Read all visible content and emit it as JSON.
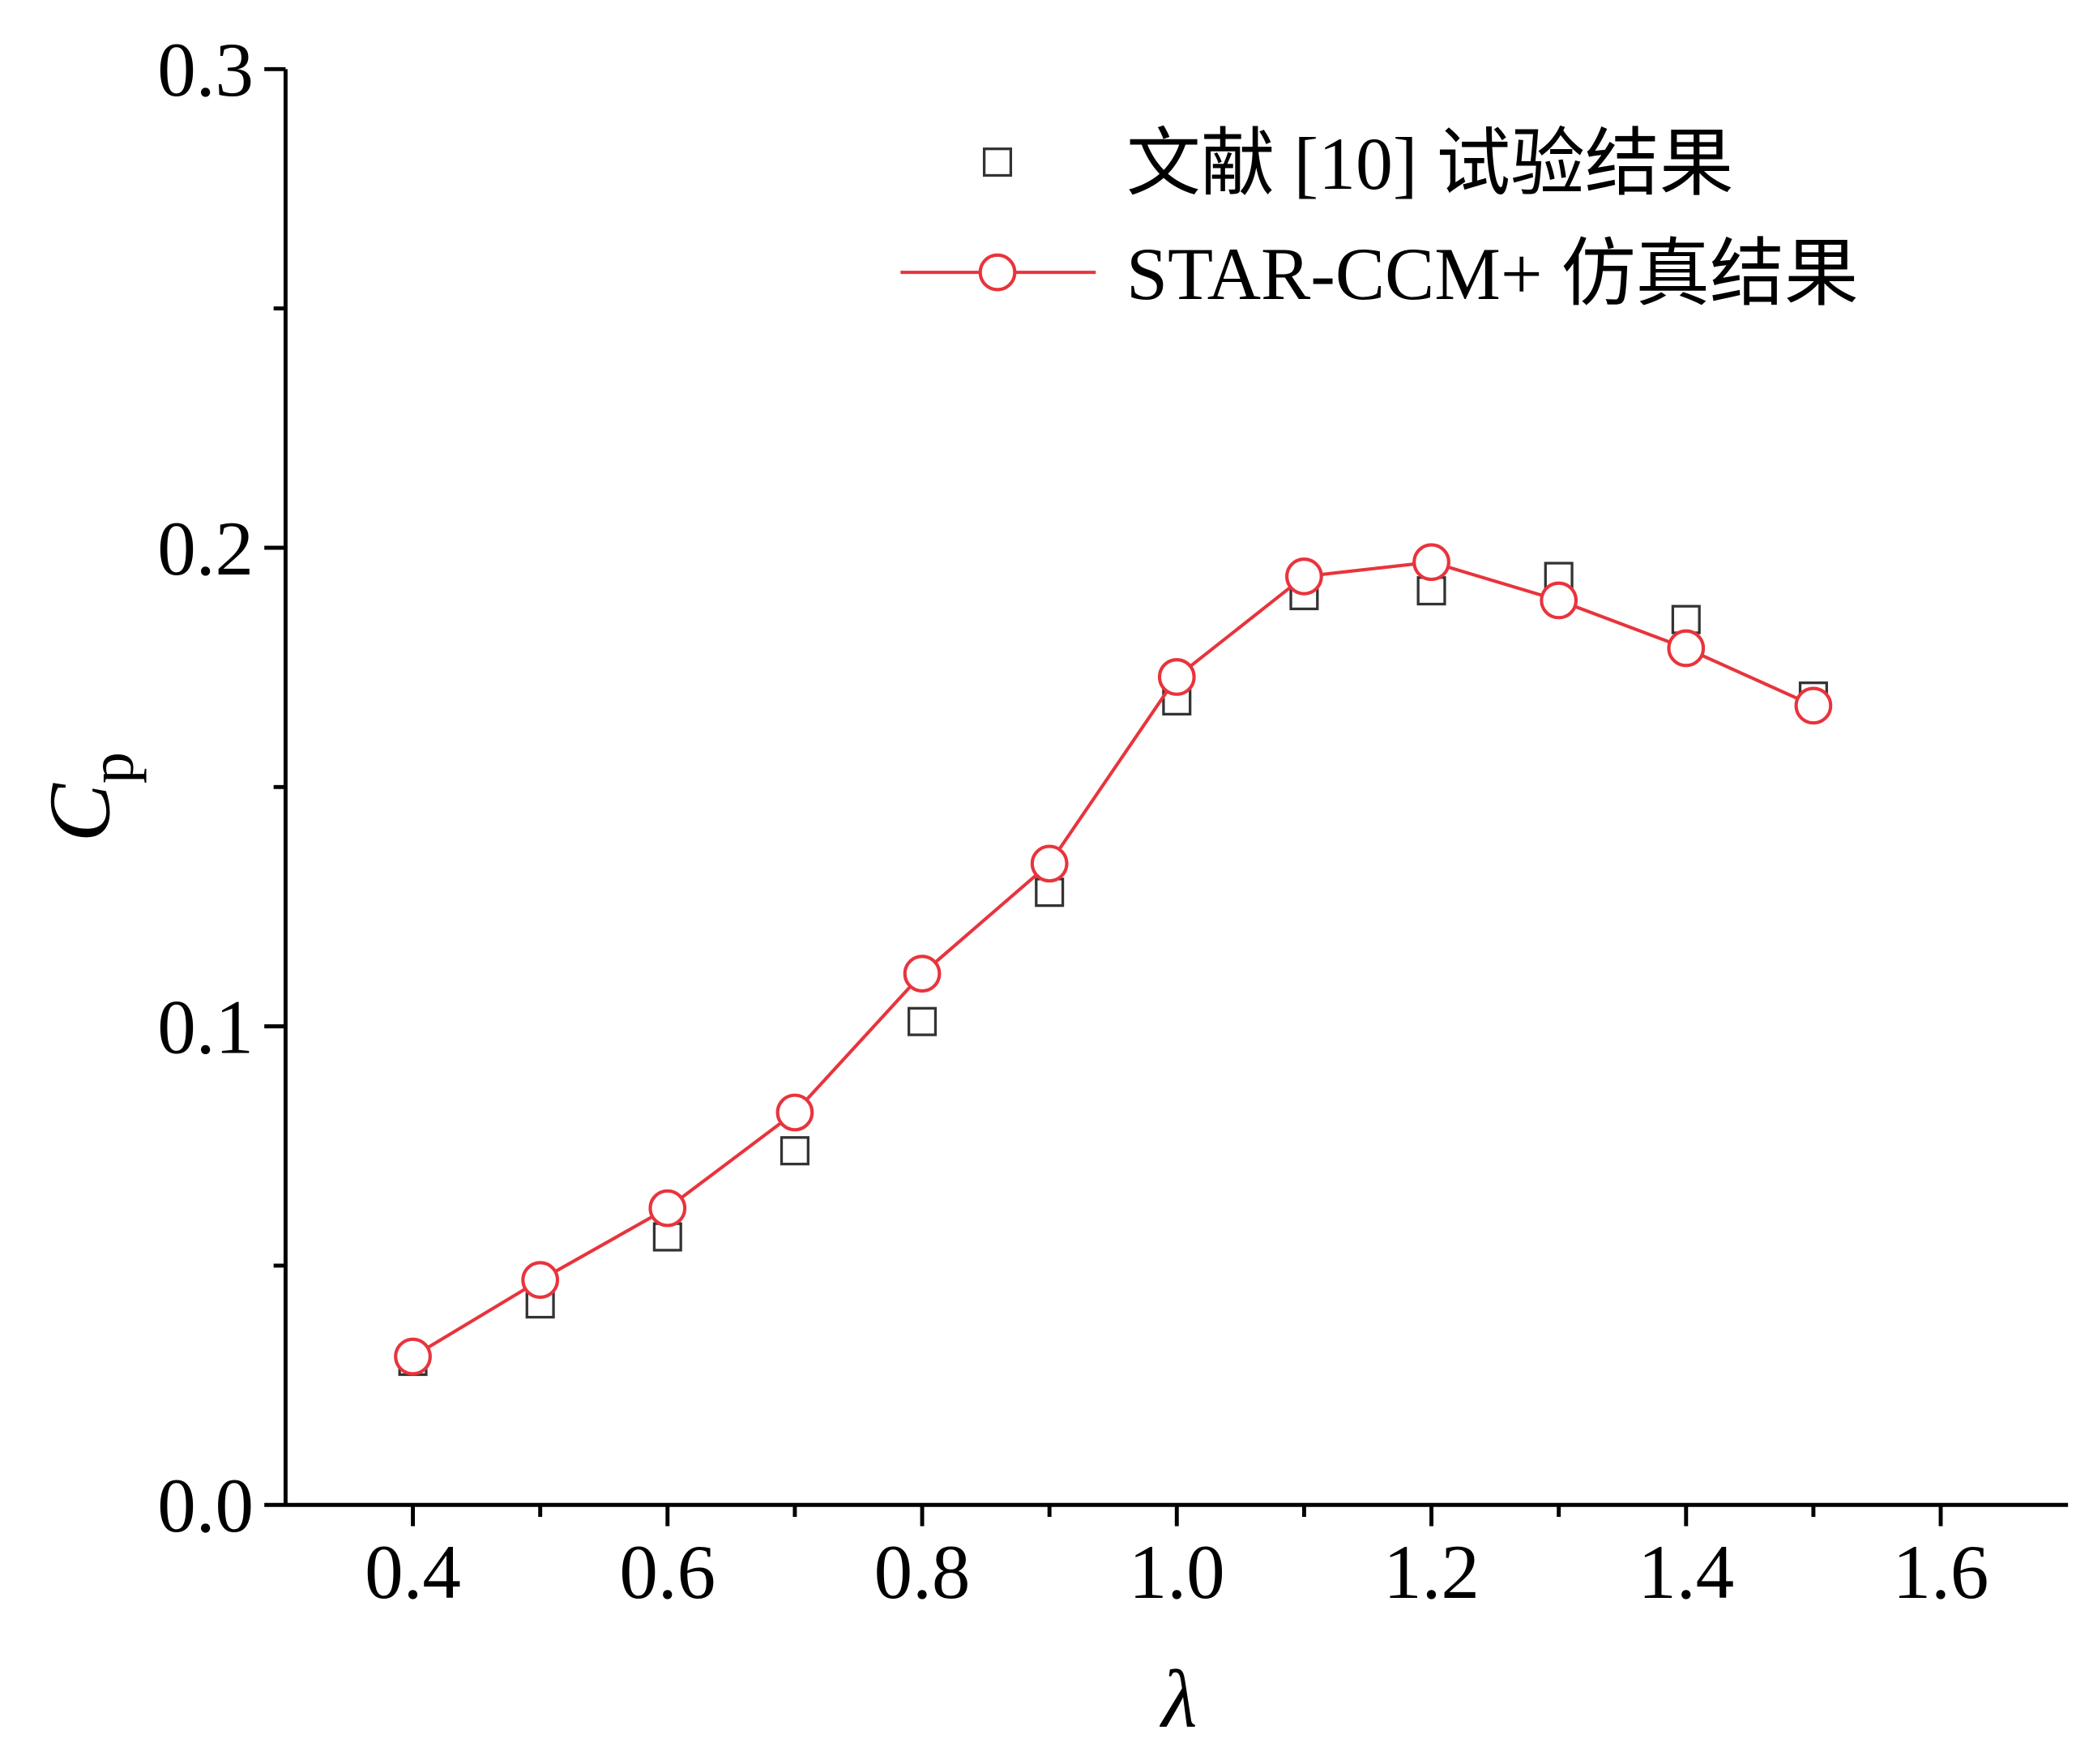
{
  "chart_data": {
    "type": "line",
    "xlabel": "λ",
    "ylabel": {
      "text": "C",
      "subscript": "p"
    },
    "xlim": [
      0.3,
      1.7
    ],
    "ylim": [
      0,
      0.3
    ],
    "xticks": [
      0.4,
      0.6,
      0.8,
      {
        "value": 1,
        "label": "1.0"
      },
      1.2,
      1.4,
      1.6
    ],
    "minor_xticks": [
      0.5,
      0.7,
      0.9,
      1.1,
      1.3,
      1.5
    ],
    "yticks": [
      {
        "value": 0,
        "label": "0.0"
      },
      0.1,
      0.2,
      0.3
    ],
    "minor_yticks": [
      0.05,
      0.15,
      0.25
    ],
    "x": [
      0.4,
      0.5,
      0.6,
      0.7,
      0.8,
      0.9,
      1.0,
      1.1,
      1.2,
      1.3,
      1.4,
      1.5
    ],
    "series": [
      {
        "name": "文献 [10] 试验结果",
        "color": "#333333",
        "marker": "square",
        "line": false,
        "values": [
          0.03,
          0.042,
          0.056,
          0.074,
          0.101,
          0.128,
          0.168,
          0.19,
          0.191,
          0.194,
          0.185,
          0.169
        ]
      },
      {
        "name": "STAR-CCM+ 仿真结果",
        "color": "#e8343c",
        "marker": "circle",
        "line": true,
        "values": [
          0.031,
          0.047,
          0.062,
          0.082,
          0.111,
          0.134,
          0.173,
          0.194,
          0.197,
          0.189,
          0.179,
          0.167
        ]
      }
    ]
  }
}
